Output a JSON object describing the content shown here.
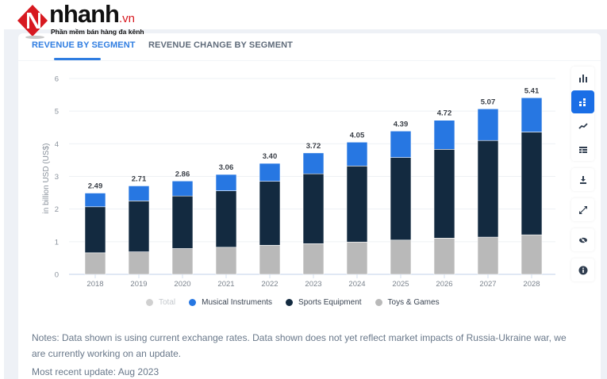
{
  "logo": {
    "brand": "nhanh",
    "tld": ".vn",
    "tagline": "Phần mềm bán hàng đa kênh"
  },
  "tabs": [
    {
      "label": "REVENUE BY SEGMENT",
      "active": true
    },
    {
      "label": "REVENUE CHANGE BY SEGMENT",
      "active": false
    }
  ],
  "toolbar": {
    "icons": [
      "bar-chart-icon",
      "stacked-bar-icon",
      "line-chart-icon",
      "table-icon",
      "download-icon",
      "expand-icon",
      "hide-icon",
      "info-icon"
    ],
    "active": "stacked-bar-icon"
  },
  "colors": {
    "accent": "#2f7de1",
    "musical": "#2777e2",
    "sports": "#132a40",
    "toys": "#b9b9b9",
    "total": "#d0d0d0"
  },
  "chart_data": {
    "type": "bar",
    "stacked": true,
    "title": "",
    "xlabel": "",
    "ylabel": "in billion USD (US$)",
    "ylim": [
      0,
      6
    ],
    "yticks": [
      "0",
      "1",
      "2",
      "3",
      "4",
      "5",
      "6"
    ],
    "grid": true,
    "legend_position": "bottom",
    "categories": [
      "2018",
      "2019",
      "2020",
      "2021",
      "2022",
      "2023",
      "2024",
      "2025",
      "2026",
      "2027",
      "2028"
    ],
    "series": [
      {
        "name": "Toys & Games",
        "values": [
          0.66,
          0.69,
          0.79,
          0.83,
          0.89,
          0.94,
          0.99,
          1.05,
          1.11,
          1.14,
          1.21
        ]
      },
      {
        "name": "Sports Equipment",
        "values": [
          1.41,
          1.56,
          1.61,
          1.73,
          1.96,
          2.14,
          2.33,
          2.53,
          2.72,
          2.96,
          3.15
        ]
      },
      {
        "name": "Musical Instruments",
        "values": [
          0.42,
          0.46,
          0.46,
          0.5,
          0.55,
          0.64,
          0.73,
          0.81,
          0.89,
          0.97,
          1.05
        ]
      }
    ],
    "totals": [
      "2.49",
      "2.71",
      "2.86",
      "3.06",
      "3.40",
      "3.72",
      "4.05",
      "4.39",
      "4.72",
      "5.07",
      "5.41"
    ],
    "legend": [
      {
        "name": "Total",
        "color_key": "total",
        "disabled": true
      },
      {
        "name": "Musical Instruments",
        "color_key": "musical"
      },
      {
        "name": "Sports Equipment",
        "color_key": "sports"
      },
      {
        "name": "Toys & Games",
        "color_key": "toys"
      }
    ]
  },
  "notes": "Notes: Data shown is using current exchange rates. Data shown does not yet reflect market impacts of Russia-Ukraine war, we are currently working on an update.",
  "update": "Most recent update: Aug 2023"
}
